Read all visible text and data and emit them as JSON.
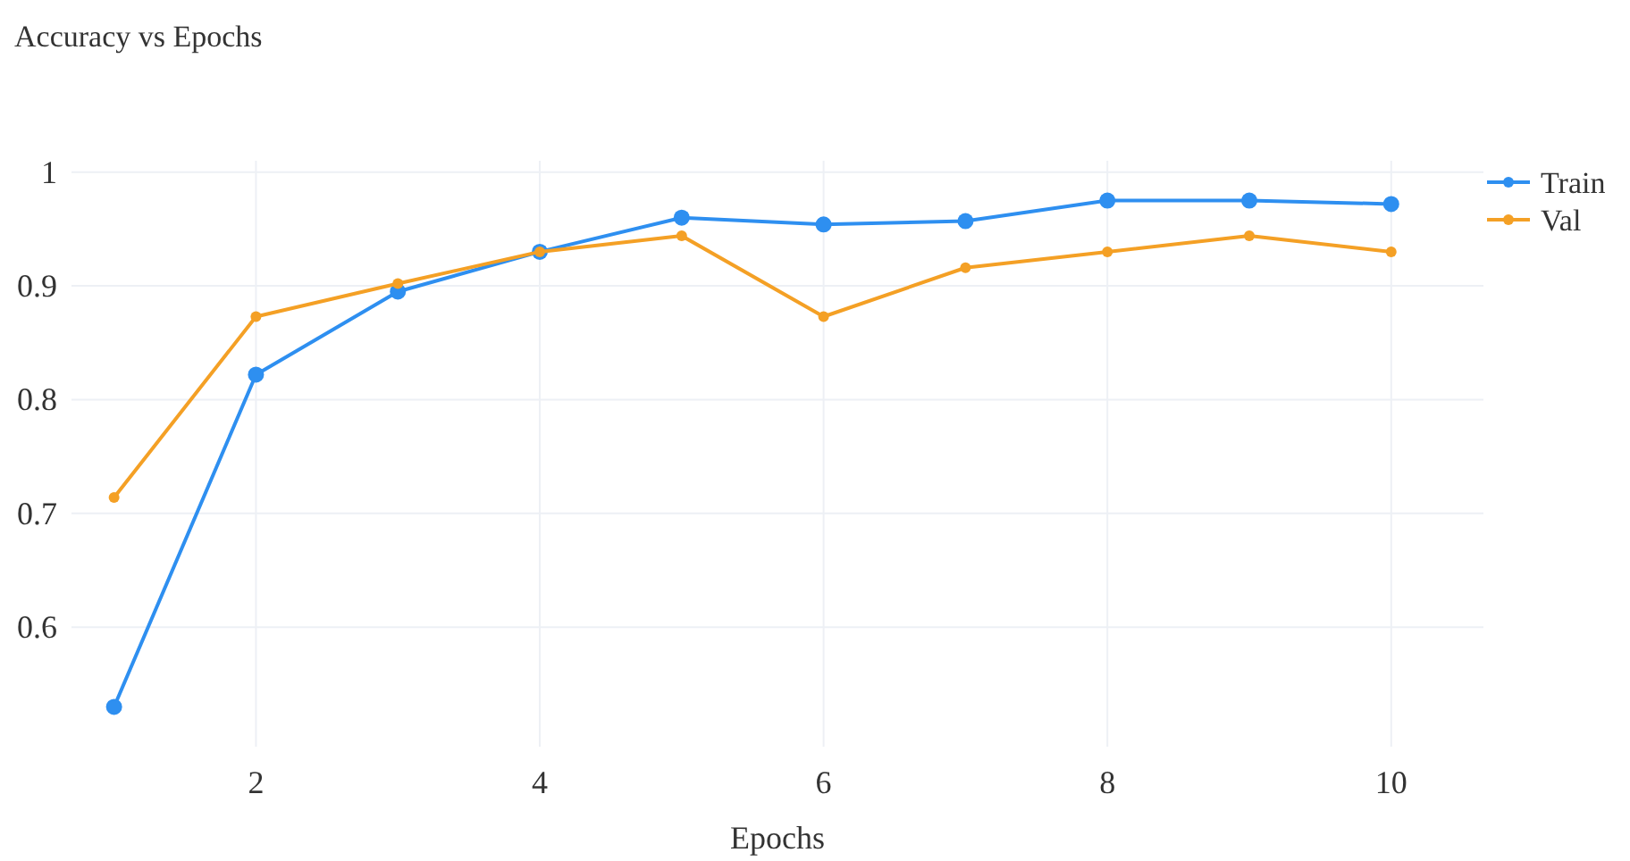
{
  "chart_data": {
    "type": "line",
    "title": "Accuracy vs Epochs",
    "xlabel": "Epochs",
    "x": [
      1,
      2,
      3,
      4,
      5,
      6,
      7,
      8,
      9,
      10
    ],
    "series": [
      {
        "name": "Train",
        "color": "#2e8ff0",
        "values": [
          0.53,
          0.822,
          0.895,
          0.93,
          0.96,
          0.954,
          0.957,
          0.975,
          0.975,
          0.972
        ]
      },
      {
        "name": "Val",
        "color": "#f4a025",
        "values": [
          0.714,
          0.873,
          0.902,
          0.93,
          0.944,
          0.873,
          0.916,
          0.93,
          0.944,
          0.93
        ]
      }
    ],
    "xlim": [
      0.7,
      10.65
    ],
    "xticks": [
      2,
      4,
      6,
      8,
      10
    ],
    "ylim": [
      0.495,
      1.01
    ],
    "yticks": [
      0.6,
      0.7,
      0.8,
      0.9,
      1
    ],
    "grid": true,
    "legend": "top right",
    "marker": "circle",
    "line_style": "solid"
  }
}
